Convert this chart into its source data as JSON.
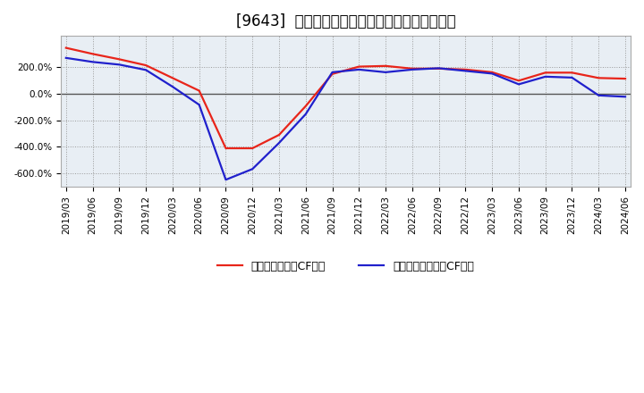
{
  "title": "[9643]  有利子負債キャッシュフロー比率の推移",
  "legend_red": "有利子負債営業CF比率",
  "legend_blue": "有利子負債フリーCF比率",
  "x_labels": [
    "2019/03",
    "2019/06",
    "2019/09",
    "2019/12",
    "2020/03",
    "2020/06",
    "2020/09",
    "2020/12",
    "2021/03",
    "2021/06",
    "2021/09",
    "2021/12",
    "2022/03",
    "2022/06",
    "2022/09",
    "2022/12",
    "2023/03",
    "2023/06",
    "2023/09",
    "2023/12",
    "2024/03",
    "2024/06"
  ],
  "red_values": [
    340,
    295,
    255,
    210,
    115,
    20,
    -410,
    -410,
    -310,
    -95,
    145,
    200,
    205,
    185,
    185,
    178,
    158,
    95,
    155,
    155,
    115,
    110
  ],
  "blue_values": [
    265,
    235,
    215,
    175,
    50,
    -85,
    -645,
    -565,
    -370,
    -155,
    158,
    178,
    158,
    178,
    188,
    168,
    148,
    68,
    125,
    118,
    -15,
    -25
  ],
  "ylim": [
    -700,
    430
  ],
  "yticks": [
    200,
    0,
    -200,
    -400,
    -600
  ],
  "ytick_labels": [
    "200.0%",
    "0.0%",
    "-200.0%",
    "-400.0%",
    "-600.0%"
  ],
  "color_red": "#e8251a",
  "color_blue": "#2020cc",
  "plot_bg": "#e8eef4",
  "fig_bg": "#ffffff",
  "grid_color": "#999999",
  "zero_line_color": "#555555",
  "title_fontsize": 12,
  "legend_fontsize": 9,
  "tick_fontsize": 7.5
}
